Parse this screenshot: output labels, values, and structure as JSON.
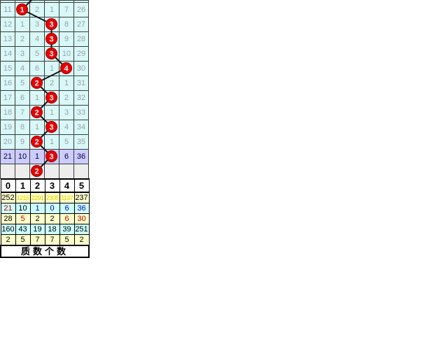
{
  "page": {
    "background": "#ffffff"
  },
  "colors": {
    "grid_cell_bg": "#d9f8f8",
    "grid_text": "#9aa0ad",
    "grid_border": "#3c3c3c",
    "highlight_row_bg": "#ccccff",
    "highlight_row_text": "#00003c",
    "tail_row_bg": "#ededed",
    "ball_fill": "#e60000",
    "ball_stroke": "#990000",
    "ball_text": "#ffffff",
    "line_color": "#141414",
    "stats_yellow_bg": "#ffffcc",
    "stats_cyan_bg": "#ccffff",
    "stats_yellow_num": "#e2d300",
    "stats_red_num": "#c00000",
    "stats_blue_num": "#0000cc",
    "stats_black_num": "#000000"
  },
  "chart_data": {
    "type": "table",
    "title": "lottery-trend-grid",
    "prev_hit_col": 2,
    "trend_rows": [
      {
        "cells": [
          "11",
          null,
          "2",
          "1",
          "7",
          "26"
        ],
        "hit": {
          "col": 1,
          "value": "1"
        },
        "style": "normal"
      },
      {
        "cells": [
          "12",
          "1",
          "3",
          null,
          "8",
          "27"
        ],
        "hit": {
          "col": 3,
          "value": "3"
        },
        "style": "normal"
      },
      {
        "cells": [
          "13",
          "2",
          "4",
          null,
          "9",
          "28"
        ],
        "hit": {
          "col": 3,
          "value": "3"
        },
        "style": "normal"
      },
      {
        "cells": [
          "14",
          "3",
          "5",
          null,
          "10",
          "29"
        ],
        "hit": {
          "col": 3,
          "value": "3"
        },
        "style": "normal"
      },
      {
        "cells": [
          "15",
          "4",
          "6",
          "1",
          null,
          "30"
        ],
        "hit": {
          "col": 4,
          "value": "4"
        },
        "style": "normal"
      },
      {
        "cells": [
          "16",
          "5",
          null,
          "2",
          "1",
          "31"
        ],
        "hit": {
          "col": 2,
          "value": "2"
        },
        "style": "normal"
      },
      {
        "cells": [
          "17",
          "6",
          "1",
          null,
          "2",
          "32"
        ],
        "hit": {
          "col": 3,
          "value": "3"
        },
        "style": "normal"
      },
      {
        "cells": [
          "18",
          "7",
          null,
          "1",
          "3",
          "33"
        ],
        "hit": {
          "col": 2,
          "value": "2"
        },
        "style": "normal"
      },
      {
        "cells": [
          "19",
          "8",
          "1",
          null,
          "4",
          "34"
        ],
        "hit": {
          "col": 3,
          "value": "3"
        },
        "style": "normal"
      },
      {
        "cells": [
          "20",
          "9",
          null,
          "1",
          "5",
          "35"
        ],
        "hit": {
          "col": 2,
          "value": "2"
        },
        "style": "normal"
      },
      {
        "cells": [
          "21",
          "10",
          "1",
          null,
          "6",
          "36"
        ],
        "hit": {
          "col": 3,
          "value": "3"
        },
        "style": "highlight"
      },
      {
        "cells": [
          null,
          null,
          null,
          null,
          null,
          null
        ],
        "hit": {
          "col": 2,
          "value": "2"
        },
        "style": "tail"
      }
    ],
    "stats_header": [
      "0",
      "1",
      "2",
      "3",
      "4",
      "5"
    ],
    "stats_rows": [
      {
        "values": [
          "252",
          "1216",
          "2291",
          "2308",
          "1137",
          "237"
        ],
        "bg": "#ffffcc",
        "colors": [
          "#000000",
          "#e2d300",
          "#e2d300",
          "#e2d300",
          "#e2d300",
          "#000000"
        ]
      },
      {
        "values": [
          "21",
          "10",
          "1",
          "0",
          "6",
          "36"
        ],
        "bg": "#ccffff",
        "colors": [
          "#c00000",
          "#000000",
          "#0000cc",
          "#0000cc",
          "#0000cc",
          "#0000cc"
        ]
      },
      {
        "values": [
          "28",
          "5",
          "2",
          "2",
          "6",
          "30"
        ],
        "bg": "#ffffcc",
        "colors": [
          "#000000",
          "#c00000",
          "#000000",
          "#000000",
          "#c00000",
          "#c00000"
        ]
      },
      {
        "values": [
          "160",
          "43",
          "19",
          "18",
          "39",
          "251"
        ],
        "bg": "#ccffff",
        "colors": [
          "#000000",
          "#000000",
          "#000000",
          "#000000",
          "#000000",
          "#000000"
        ]
      },
      {
        "values": [
          "2",
          "5",
          "7",
          "7",
          "5",
          "2"
        ],
        "bg": "#ffffcc",
        "colors": [
          "#000000",
          "#000000",
          "#000000",
          "#000000",
          "#000000",
          "#000000"
        ]
      }
    ],
    "footer_label": "质数个数"
  }
}
